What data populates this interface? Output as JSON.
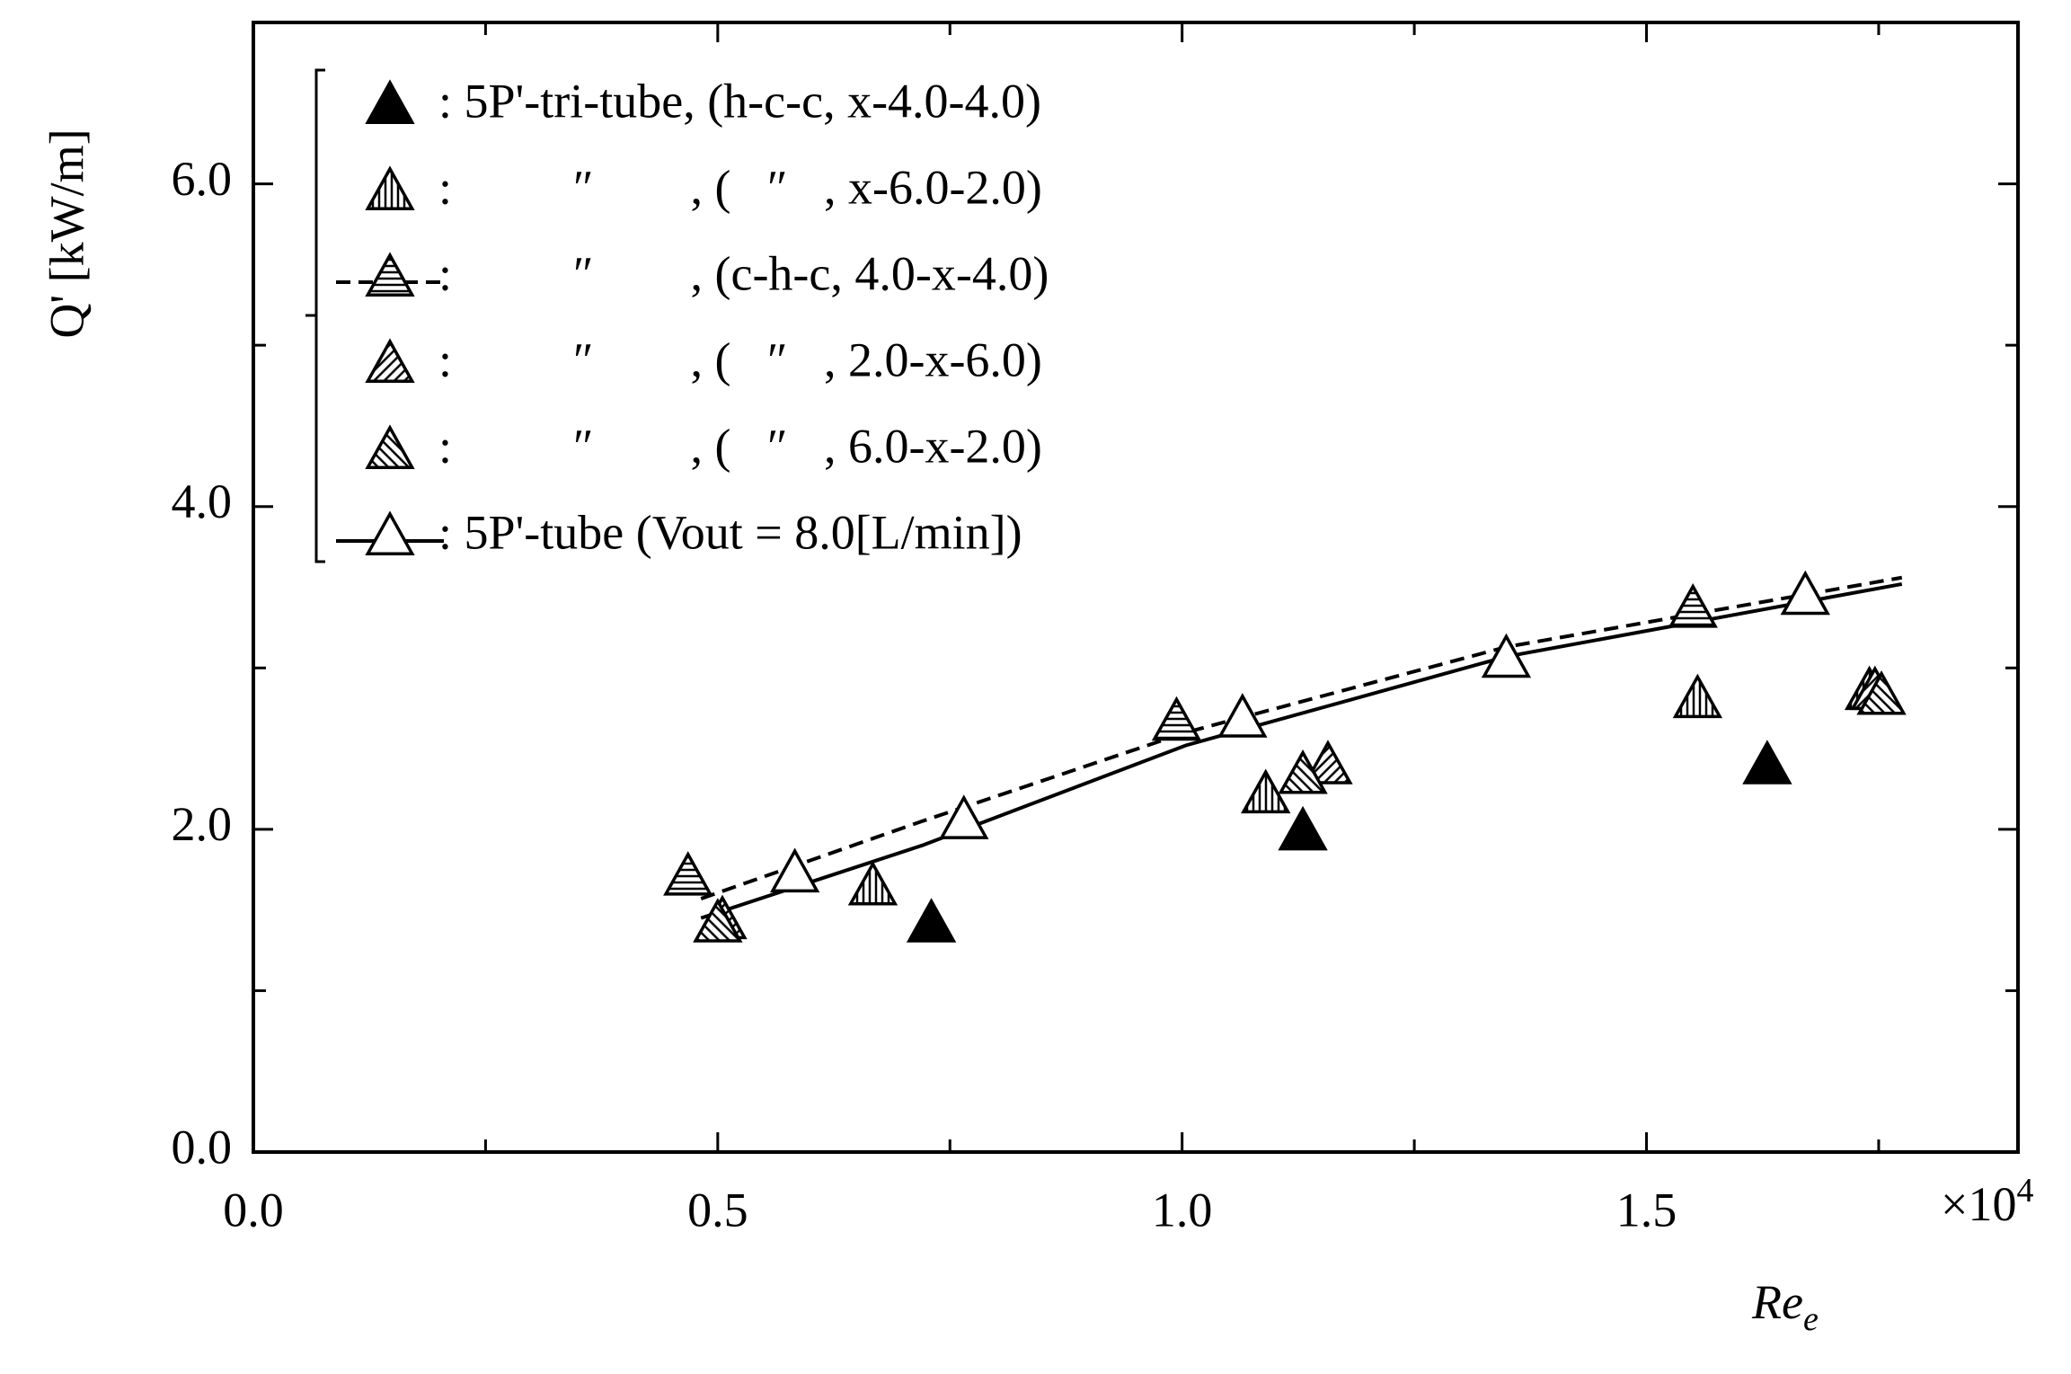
{
  "chart_data": {
    "type": "scatter",
    "ylabel": "Q' [kW/m]",
    "xlabel": "Re",
    "xlabel_sub": "e",
    "x_multiplier": "×10",
    "x_multiplier_exp": "4",
    "xlim": [
      0,
      1.9
    ],
    "xticks": [
      {
        "value": 0,
        "label": "0.0"
      },
      {
        "value": 0.5,
        "label": "0.5"
      },
      {
        "value": 1.0,
        "label": "1.0"
      },
      {
        "value": 1.5,
        "label": "1.5"
      }
    ],
    "xminor_ticks": [
      0.25,
      0.75,
      1.25,
      1.75
    ],
    "ylim": [
      0,
      7
    ],
    "yticks": [
      {
        "value": 0,
        "label": "0.0"
      },
      {
        "value": 2,
        "label": "2.0"
      },
      {
        "value": 4,
        "label": "4.0"
      },
      {
        "value": 6,
        "label": "6.0"
      }
    ],
    "yminor_ticks": [
      1,
      3,
      5
    ],
    "grid": false,
    "legend_position": "upper left",
    "series": [
      {
        "name": ": 5P'-tri-tube, (h-c-c, x-4.0-4.0)",
        "color": "#000000",
        "fill": "solid",
        "x": [
          0.73,
          1.13,
          1.63
        ],
        "values": [
          1.41,
          1.98,
          2.39
        ]
      },
      {
        "name": ":          ″        , (   ″   , x-6.0-2.0)",
        "color": "#000000",
        "fill": "vertical",
        "x": [
          0.667,
          1.09,
          1.555,
          1.74
        ],
        "values": [
          1.64,
          2.21,
          2.8,
          2.85
        ]
      },
      {
        "name": ":          ″        , (c-h-c, 4.0-x-4.0)",
        "color": "#000000",
        "fill": "horizontal",
        "legend_line": "dashed",
        "x": [
          0.468,
          0.994,
          1.55
        ],
        "values": [
          1.7,
          2.66,
          3.36
        ]
      },
      {
        "name": ":          ″        , (   ″   , 2.0-x-6.0)",
        "color": "#000000",
        "fill": "diagonal-up",
        "x": [
          0.505,
          1.157,
          1.746
        ],
        "values": [
          1.43,
          2.39,
          2.85
        ]
      },
      {
        "name": ":          ″        , (   ″   , 6.0-x-2.0)",
        "color": "#000000",
        "fill": "diagonal-down",
        "x": [
          0.5,
          1.13,
          1.753
        ],
        "values": [
          1.41,
          2.33,
          2.82
        ]
      },
      {
        "name": ": 5P'-tube (Vout = 8.0[L/min])",
        "color": "#000000",
        "fill": "none",
        "legend_line": "solid",
        "x": [
          0.583,
          0.765,
          1.065,
          1.349,
          1.671
        ],
        "values": [
          1.72,
          2.05,
          2.68,
          3.05,
          3.44
        ]
      }
    ],
    "fit_lines": [
      {
        "line_style": "solid",
        "color": "#000000",
        "x": [
          0.482,
          0.72,
          1.004,
          1.349,
          1.775
        ],
        "values": [
          1.45,
          1.9,
          2.52,
          3.07,
          3.52
        ]
      },
      {
        "line_style": "dashed",
        "color": "#000000",
        "x": [
          0.482,
          0.72,
          1.004,
          1.349,
          1.775
        ],
        "values": [
          1.57,
          2.05,
          2.6,
          3.13,
          3.56
        ]
      }
    ]
  }
}
